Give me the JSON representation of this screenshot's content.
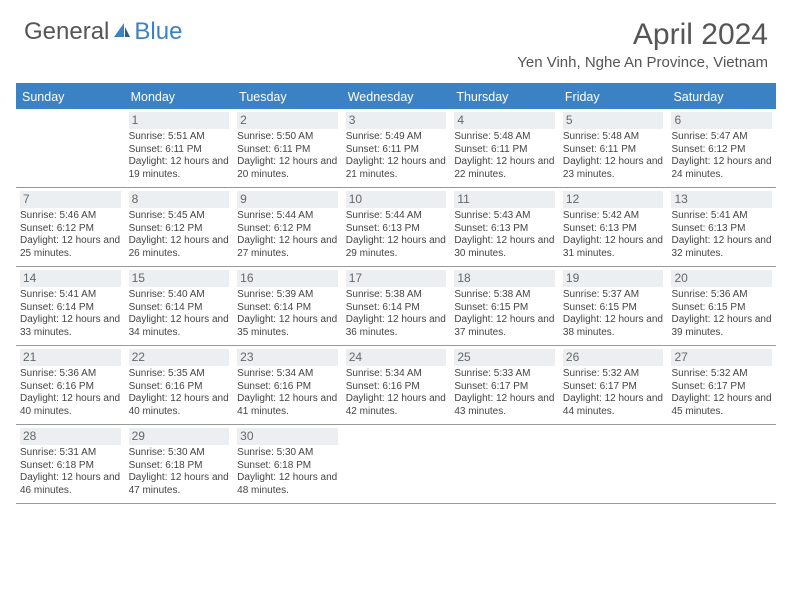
{
  "logo": {
    "text1": "General",
    "text2": "Blue"
  },
  "title": "April 2024",
  "location": "Yen Vinh, Nghe An Province, Vietnam",
  "colors": {
    "accent": "#3b82c4",
    "daynum_bg": "#eceff1",
    "text": "#444444",
    "header_text": "#555555"
  },
  "day_names": [
    "Sunday",
    "Monday",
    "Tuesday",
    "Wednesday",
    "Thursday",
    "Friday",
    "Saturday"
  ],
  "type": "calendar",
  "grid": {
    "cols": 7,
    "rows": 5,
    "first_day_col": 1,
    "days_in_month": 30
  },
  "days": [
    {
      "n": 1,
      "sunrise": "5:51 AM",
      "sunset": "6:11 PM",
      "daylight": "12 hours and 19 minutes."
    },
    {
      "n": 2,
      "sunrise": "5:50 AM",
      "sunset": "6:11 PM",
      "daylight": "12 hours and 20 minutes."
    },
    {
      "n": 3,
      "sunrise": "5:49 AM",
      "sunset": "6:11 PM",
      "daylight": "12 hours and 21 minutes."
    },
    {
      "n": 4,
      "sunrise": "5:48 AM",
      "sunset": "6:11 PM",
      "daylight": "12 hours and 22 minutes."
    },
    {
      "n": 5,
      "sunrise": "5:48 AM",
      "sunset": "6:11 PM",
      "daylight": "12 hours and 23 minutes."
    },
    {
      "n": 6,
      "sunrise": "5:47 AM",
      "sunset": "6:12 PM",
      "daylight": "12 hours and 24 minutes."
    },
    {
      "n": 7,
      "sunrise": "5:46 AM",
      "sunset": "6:12 PM",
      "daylight": "12 hours and 25 minutes."
    },
    {
      "n": 8,
      "sunrise": "5:45 AM",
      "sunset": "6:12 PM",
      "daylight": "12 hours and 26 minutes."
    },
    {
      "n": 9,
      "sunrise": "5:44 AM",
      "sunset": "6:12 PM",
      "daylight": "12 hours and 27 minutes."
    },
    {
      "n": 10,
      "sunrise": "5:44 AM",
      "sunset": "6:13 PM",
      "daylight": "12 hours and 29 minutes."
    },
    {
      "n": 11,
      "sunrise": "5:43 AM",
      "sunset": "6:13 PM",
      "daylight": "12 hours and 30 minutes."
    },
    {
      "n": 12,
      "sunrise": "5:42 AM",
      "sunset": "6:13 PM",
      "daylight": "12 hours and 31 minutes."
    },
    {
      "n": 13,
      "sunrise": "5:41 AM",
      "sunset": "6:13 PM",
      "daylight": "12 hours and 32 minutes."
    },
    {
      "n": 14,
      "sunrise": "5:41 AM",
      "sunset": "6:14 PM",
      "daylight": "12 hours and 33 minutes."
    },
    {
      "n": 15,
      "sunrise": "5:40 AM",
      "sunset": "6:14 PM",
      "daylight": "12 hours and 34 minutes."
    },
    {
      "n": 16,
      "sunrise": "5:39 AM",
      "sunset": "6:14 PM",
      "daylight": "12 hours and 35 minutes."
    },
    {
      "n": 17,
      "sunrise": "5:38 AM",
      "sunset": "6:14 PM",
      "daylight": "12 hours and 36 minutes."
    },
    {
      "n": 18,
      "sunrise": "5:38 AM",
      "sunset": "6:15 PM",
      "daylight": "12 hours and 37 minutes."
    },
    {
      "n": 19,
      "sunrise": "5:37 AM",
      "sunset": "6:15 PM",
      "daylight": "12 hours and 38 minutes."
    },
    {
      "n": 20,
      "sunrise": "5:36 AM",
      "sunset": "6:15 PM",
      "daylight": "12 hours and 39 minutes."
    },
    {
      "n": 21,
      "sunrise": "5:36 AM",
      "sunset": "6:16 PM",
      "daylight": "12 hours and 40 minutes."
    },
    {
      "n": 22,
      "sunrise": "5:35 AM",
      "sunset": "6:16 PM",
      "daylight": "12 hours and 40 minutes."
    },
    {
      "n": 23,
      "sunrise": "5:34 AM",
      "sunset": "6:16 PM",
      "daylight": "12 hours and 41 minutes."
    },
    {
      "n": 24,
      "sunrise": "5:34 AM",
      "sunset": "6:16 PM",
      "daylight": "12 hours and 42 minutes."
    },
    {
      "n": 25,
      "sunrise": "5:33 AM",
      "sunset": "6:17 PM",
      "daylight": "12 hours and 43 minutes."
    },
    {
      "n": 26,
      "sunrise": "5:32 AM",
      "sunset": "6:17 PM",
      "daylight": "12 hours and 44 minutes."
    },
    {
      "n": 27,
      "sunrise": "5:32 AM",
      "sunset": "6:17 PM",
      "daylight": "12 hours and 45 minutes."
    },
    {
      "n": 28,
      "sunrise": "5:31 AM",
      "sunset": "6:18 PM",
      "daylight": "12 hours and 46 minutes."
    },
    {
      "n": 29,
      "sunrise": "5:30 AM",
      "sunset": "6:18 PM",
      "daylight": "12 hours and 47 minutes."
    },
    {
      "n": 30,
      "sunrise": "5:30 AM",
      "sunset": "6:18 PM",
      "daylight": "12 hours and 48 minutes."
    }
  ],
  "labels": {
    "sunrise": "Sunrise:",
    "sunset": "Sunset:",
    "daylight": "Daylight:"
  }
}
